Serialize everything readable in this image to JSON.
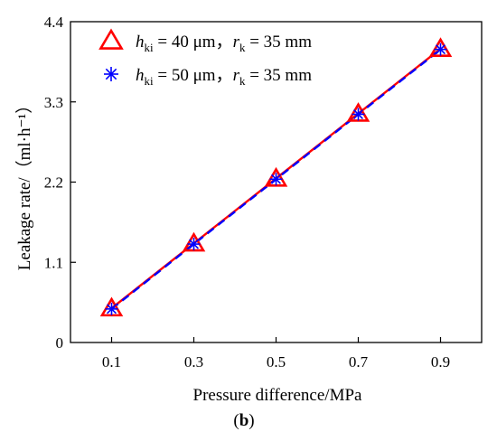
{
  "chart_data": {
    "type": "line",
    "x": [
      0.1,
      0.3,
      0.5,
      0.7,
      0.9
    ],
    "xticks": [
      "0.1",
      "0.3",
      "0.5",
      "0.7",
      "0.9"
    ],
    "xlim": [
      0.0,
      1.0
    ],
    "yticks": [
      "0",
      "1.1",
      "2.2",
      "3.3",
      "4.4"
    ],
    "ylim": [
      0,
      4.4
    ],
    "xlabel": "Pressure difference/MPa",
    "ylabel": "Leakage rate/（ml·h⁻¹）",
    "series": [
      {
        "values": [
          0.47,
          1.36,
          2.25,
          3.14,
          4.03
        ],
        "color": "#ff0000",
        "marker": "triangle-open",
        "line_style": "solid",
        "legend": {
          "h": "h",
          "h_sub": "ki",
          "h_val": " = 40 μm，",
          "r": "r",
          "r_sub": "k",
          "r_val": " = 35 mm"
        }
      },
      {
        "values": [
          0.46,
          1.35,
          2.24,
          3.13,
          4.02
        ],
        "color": "#0000ff",
        "marker": "asterisk",
        "line_style": "dashed",
        "legend": {
          "h": "h",
          "h_sub": "ki",
          "h_val": " = 50 μm，",
          "r": "r",
          "r_sub": "k",
          "r_val": " = 35 mm"
        }
      }
    ],
    "legend_position": "top-left",
    "grid": false
  },
  "caption": {
    "open": "(",
    "label": "b",
    "close": ")"
  }
}
